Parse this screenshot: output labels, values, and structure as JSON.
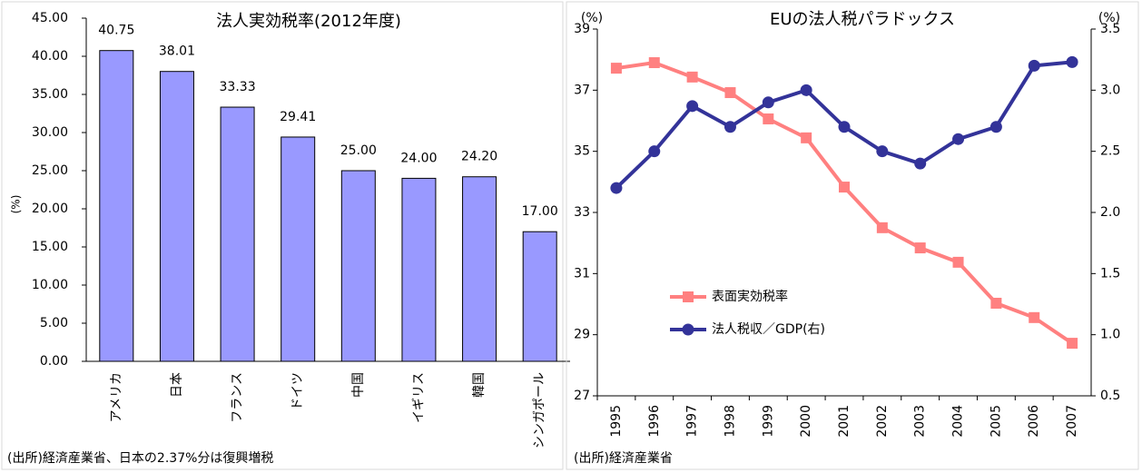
{
  "chart_data": [
    {
      "type": "bar",
      "title": "法人実効税率(2012年度)",
      "y_label": "(%)",
      "categories": [
        "アメリカ",
        "日本",
        "フランス",
        "ドイツ",
        "中国",
        "イギリス",
        "韓国",
        "シンガポール"
      ],
      "values": [
        40.75,
        38.01,
        33.33,
        29.41,
        25,
        24,
        24.2,
        17
      ],
      "value_labels": [
        "40.75",
        "38.01",
        "33.33",
        "29.41",
        "25.00",
        "24.00",
        "24.20",
        "17.00"
      ],
      "color": "#9999ff",
      "ylim": [
        0,
        45
      ],
      "yticks": [
        {
          "value": 0,
          "label": "0.00"
        },
        {
          "value": 5,
          "label": "5.00"
        },
        {
          "value": 10,
          "label": "10.00"
        },
        {
          "value": 15,
          "label": "15.00"
        },
        {
          "value": 20,
          "label": "20.00"
        },
        {
          "value": 25,
          "label": "25.00"
        },
        {
          "value": 30,
          "label": "30.00"
        },
        {
          "value": 35,
          "label": "35.00"
        },
        {
          "value": 40,
          "label": "40.00"
        },
        {
          "value": 45,
          "label": "45.00"
        }
      ],
      "source": "(出所)経済産業省、日本の2.37%分は復興増税"
    },
    {
      "type": "line",
      "title": "EUの法人税パラドックス",
      "y_label": "(%)",
      "y2_label": "(%)",
      "categories": [
        "1995",
        "1996",
        "1997",
        "1998",
        "1999",
        "2000",
        "2001",
        "2002",
        "2003",
        "2004",
        "2005",
        "2006",
        "2007"
      ],
      "series": [
        {
          "name": "表面実効税率",
          "color": "#ff8080",
          "marker": "square",
          "values": [
            37.72,
            37.9,
            37.43,
            36.92,
            36.06,
            35.44,
            33.83,
            32.5,
            31.84,
            31.37,
            30.03,
            29.56,
            28.72
          ]
        },
        {
          "name": "法人税収／GDP(右)",
          "color": "#333399",
          "marker": "circle",
          "axis": "y2",
          "values": [
            2.2,
            2.5,
            2.87,
            2.7,
            2.9,
            3.0,
            2.7,
            2.5,
            2.4,
            2.6,
            2.7,
            3.2,
            3.23
          ]
        }
      ],
      "ylim": [
        27,
        39
      ],
      "yticks": [
        27,
        29,
        31,
        33,
        35,
        37,
        39
      ],
      "y2lim": [
        0.5,
        3.5
      ],
      "y2ticks": [
        0.5,
        {
          "value": 1,
          "label": "1.0"
        },
        1.5,
        {
          "value": 2,
          "label": "2.0"
        },
        2.5,
        {
          "value": 3,
          "label": "3.0"
        },
        3.5
      ],
      "legend": "left",
      "source": "(出所)経済産業省"
    }
  ]
}
